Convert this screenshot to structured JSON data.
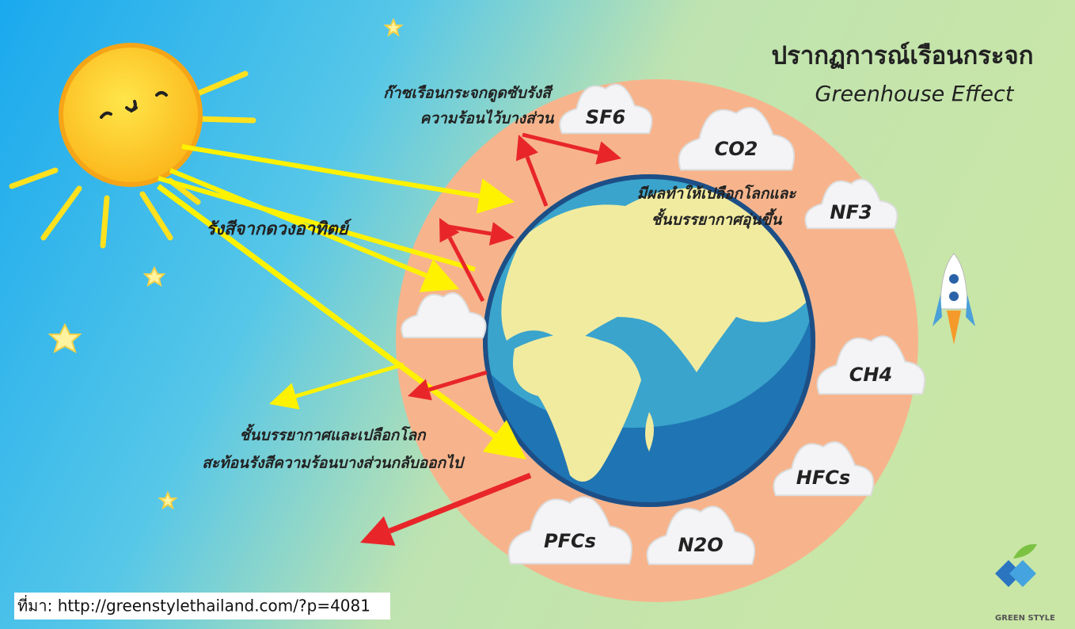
{
  "title": "ปรากฏการณ์เรือนกระจก",
  "subtitle": "Greenhouse Effect",
  "sun_label": "รังสีจากดวงอาทิตย์",
  "absorb_label": [
    "ก๊าซเรือนกระจกดูดซับรังสี",
    "ความร้อนไว้บางส่วน"
  ],
  "warm_label": [
    "มีผลทำให้เปลือกโลกและ",
    "ชั้นบรรยากาศอุ่นขึ้น"
  ],
  "reflect_label": [
    "ชั้นบรรยากาศและเปลือกโลก",
    "สะท้อนรังสีความร้อนบางส่วนกลับออกไป"
  ],
  "gases": [
    "SF6",
    "CO2",
    "NF3",
    "CH4",
    "HFCs",
    "N2O",
    "PFCs"
  ],
  "source": "ที่มา: http://greenstylethailand.com/?p=4081",
  "logo": "GREEN STYLE"
}
